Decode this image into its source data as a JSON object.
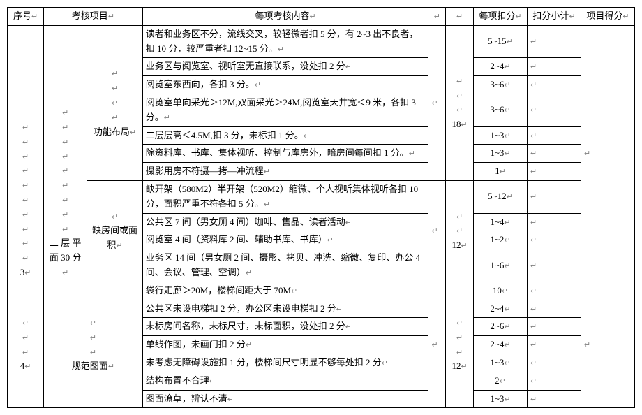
{
  "table": {
    "border_color": "#000000",
    "background": "#ffffff",
    "font_family": "SimSun",
    "font_size_pt": 10,
    "columns": {
      "seq": "序号",
      "project": "考核项目",
      "content": "每项考核内容",
      "deduct": "每项扣分",
      "subtotal": "扣分小计",
      "score": "项目得分"
    },
    "sections": [
      {
        "seq": "3",
        "project_name": "二 层 平面 30 分",
        "subgroups": [
          {
            "name": "功能布局",
            "subtotal": "18",
            "rows": [
              {
                "content": "读者和业务区不分，流线交叉，较轻微者扣 5 分，有 2~3 出不良者，扣 10 分，较严重者扣 12~15 分。",
                "deduct": "5~15"
              },
              {
                "content": "业务区与阅览室、视听室无直接联系，没处扣 2 分",
                "deduct": "2~4"
              },
              {
                "content": "阅览室东西向，各扣 3 分。",
                "deduct": "3~6"
              },
              {
                "content": "阅览室单向采光＞12M,双面采光＞24M,阅览室天井宽＜9 米，各扣 3 分。",
                "deduct": "3~6"
              },
              {
                "content": "二层层高＜4.5M,扣 3 分，未标扣 1 分。",
                "deduct": "1~3"
              },
              {
                "content": "除资料库、书库、集体视听、控制与库房外，暗房间每间扣 1 分。",
                "deduct": "1~3"
              },
              {
                "content": "摄影用房不符摄—拷—冲流程",
                "deduct": "1"
              }
            ]
          },
          {
            "name": "缺房间或面积",
            "subtotal": "12",
            "rows": [
              {
                "content": "缺开架（580M2）半开架（520M2）缩微、个人视听集体视听各扣 10 分，面积严重不符各扣 5 分。",
                "deduct": "5~12"
              },
              {
                "content": "公共区 7 间（男女厕 4 间）咖啡、售品、读者活动",
                "deduct": "1~4"
              },
              {
                "content": "阅览室 4 间（资料库 2 间、辅助书库、书库）",
                "deduct": "1~2"
              },
              {
                "content": "业务区 14 间（男女厕 2 间、摄影、拷贝、冲洗、缩微、复印、办公 4 间、会议、管理、空调）",
                "deduct": "1~6"
              }
            ]
          }
        ]
      },
      {
        "seq": "4",
        "project_name": "规范图面",
        "subtotal": "12",
        "rows": [
          {
            "content": "袋行走廊＞20M，楼梯间距大于 70M",
            "deduct": "10"
          },
          {
            "content": "公共区未设电梯扣 2 分，办公区未设电梯扣 2 分",
            "deduct": "2~4"
          },
          {
            "content": "未标房间名称，未标尺寸，未标面积，没处扣 2 分",
            "deduct": "2~6"
          },
          {
            "content": "单线作图，未画门扣 2 分",
            "deduct": "2~4"
          },
          {
            "content": "未考虑无障碍设施扣 1 分，楼梯间尺寸明显不够每处扣 2 分",
            "deduct": "1~3"
          },
          {
            "content": "结构布置不合理",
            "deduct": "2"
          },
          {
            "content": "图面潦草，辨认不清",
            "deduct": "1~3"
          }
        ]
      }
    ]
  }
}
